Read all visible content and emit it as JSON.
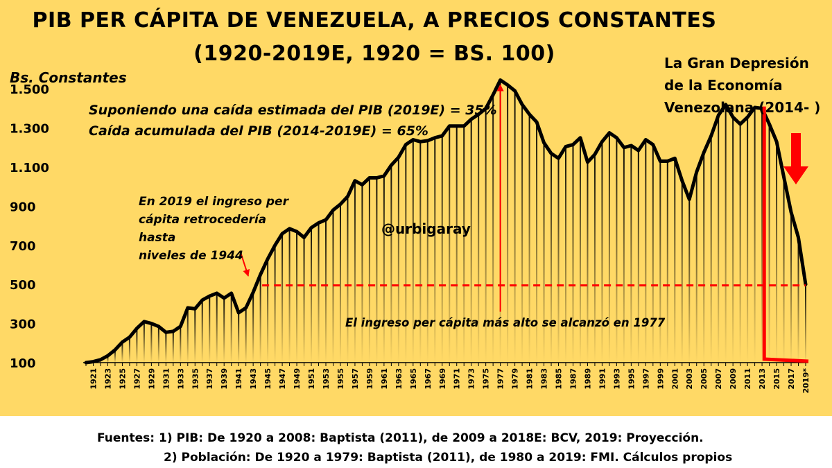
{
  "title_line_1": "PIB PER CÁPITA DE VENEZUELA, A PRECIOS CONSTANTES",
  "title_line_2": "(1920-2019E, 1920 = BS. 100)",
  "y_axis_label": "Bs. Constantes",
  "annotations": {
    "assumption_1": "Suponiendo una caída estimada del PIB (2019E) = 35%",
    "assumption_2": "Caída acumulada del PIB (2014-2019E) = 65%",
    "note_1944": [
      "En 2019 el ingreso per",
      "cápita retrocedería hasta",
      "niveles de 1944"
    ],
    "watermark": "@urbigaray",
    "peak": "El ingreso per cápita más alto se alcanzó en 1977",
    "depression": [
      "La Gran Depresión",
      "de la Economía",
      "Venezolana (2014- )"
    ]
  },
  "footer": {
    "line_1": "Fuentes: 1) PIB: De 1920 a 2008: Baptista (2011), de 2009 a 2018E: BCV, 2019: Proyección.",
    "line_2": "2) Población: De 1920 a 1979: Baptista (2011), de 1980 a 2019: FMI. Cálculos propios"
  },
  "colors": {
    "background": "#ffd966",
    "line": "#000000",
    "annotation": "#ff0000"
  },
  "chart_data": {
    "type": "area",
    "title": "PIB PER CÁPITA DE VENEZUELA, A PRECIOS CONSTANTES (1920-2019E, 1920 = BS. 100)",
    "ylabel": "Bs. Constantes",
    "xlabel": "",
    "ylim": [
      100,
      1600
    ],
    "yticks": [
      100,
      300,
      500,
      700,
      900,
      1100,
      1300,
      1500
    ],
    "ytick_labels": [
      "100",
      "300",
      "500",
      "700",
      "900",
      "1.100",
      "1.300",
      "1.500"
    ],
    "xtick_labels": [
      "1921",
      "1923",
      "1925",
      "1927",
      "1929",
      "1931",
      "1933",
      "1935",
      "1937",
      "1939",
      "1941",
      "1943",
      "1945",
      "1947",
      "1949",
      "1951",
      "1953",
      "1955",
      "1957",
      "1959",
      "1961",
      "1963",
      "1965",
      "1967",
      "1969",
      "1971",
      "1973",
      "1975",
      "1977",
      "1979",
      "1981",
      "1983",
      "1985",
      "1987",
      "1989",
      "1991",
      "1993",
      "1995",
      "1997",
      "1999",
      "2001",
      "2003",
      "2005",
      "2007",
      "2009",
      "2011",
      "2013",
      "2015",
      "2017",
      "2019*"
    ],
    "x": [
      1920,
      1921,
      1922,
      1923,
      1924,
      1925,
      1926,
      1927,
      1928,
      1929,
      1930,
      1931,
      1932,
      1933,
      1934,
      1935,
      1936,
      1937,
      1938,
      1939,
      1940,
      1941,
      1942,
      1943,
      1944,
      1945,
      1946,
      1947,
      1948,
      1949,
      1950,
      1951,
      1952,
      1953,
      1954,
      1955,
      1956,
      1957,
      1958,
      1959,
      1960,
      1961,
      1962,
      1963,
      1964,
      1965,
      1966,
      1967,
      1968,
      1969,
      1970,
      1971,
      1972,
      1973,
      1974,
      1975,
      1976,
      1977,
      1978,
      1979,
      1980,
      1981,
      1982,
      1983,
      1984,
      1985,
      1986,
      1987,
      1988,
      1989,
      1990,
      1991,
      1992,
      1993,
      1994,
      1995,
      1996,
      1997,
      1998,
      1999,
      2000,
      2001,
      2002,
      2003,
      2004,
      2005,
      2006,
      2007,
      2008,
      2009,
      2010,
      2011,
      2012,
      2013,
      2014,
      2015,
      2016,
      2017,
      2018,
      2019
    ],
    "values": [
      100,
      105,
      115,
      135,
      165,
      205,
      230,
      275,
      310,
      300,
      285,
      255,
      260,
      285,
      380,
      375,
      420,
      440,
      455,
      430,
      455,
      355,
      380,
      460,
      550,
      630,
      700,
      760,
      785,
      770,
      740,
      790,
      815,
      830,
      880,
      910,
      950,
      1030,
      1010,
      1045,
      1045,
      1055,
      1110,
      1150,
      1215,
      1240,
      1230,
      1235,
      1250,
      1260,
      1310,
      1310,
      1310,
      1345,
      1370,
      1400,
      1470,
      1545,
      1520,
      1490,
      1420,
      1370,
      1330,
      1225,
      1170,
      1145,
      1205,
      1215,
      1250,
      1125,
      1165,
      1230,
      1275,
      1250,
      1200,
      1210,
      1185,
      1240,
      1215,
      1130,
      1130,
      1145,
      1030,
      935,
      1075,
      1175,
      1260,
      1365,
      1420,
      1355,
      1320,
      1355,
      1405,
      1400,
      1320,
      1230,
      1050,
      870,
      740,
      500
    ],
    "reference_lines": [
      {
        "type": "horizontal",
        "y": 495,
        "from_x": 1945,
        "to_x": 2019,
        "style": "dashed"
      }
    ],
    "grid": false,
    "legend": "none"
  }
}
